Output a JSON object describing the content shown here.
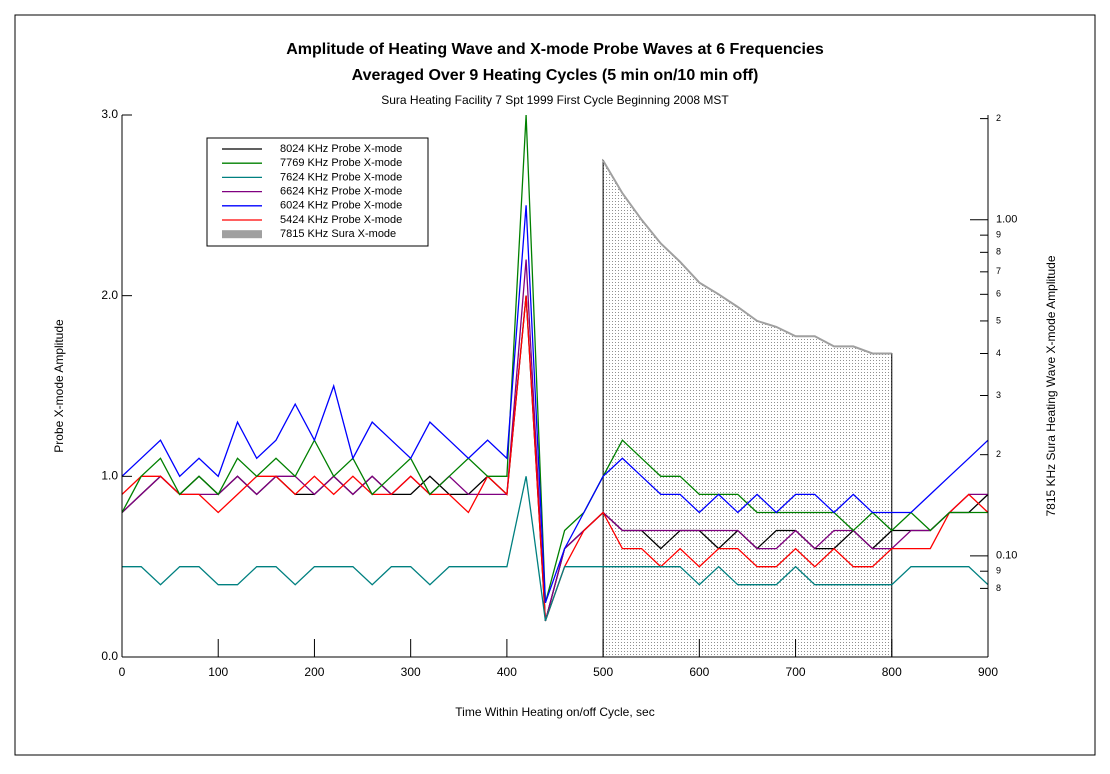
{
  "chart_data": {
    "type": "line",
    "title": "Amplitude of Heating Wave and X-mode Probe Waves at 6 Frequencies",
    "title_line2": "Averaged Over 9 Heating Cycles (5 min on/10 min off)",
    "subtitle": "Sura Heating Facility 7 Spt 1999 First Cycle Beginning 2008 MST",
    "x_label": "Time Within Heating on/off Cycle, sec",
    "y_label": "Probe X-mode Amplitude",
    "y2_label": "7815 KHz Sura Heating Wave X-mode Amplitude",
    "x": [
      0,
      20,
      40,
      60,
      80,
      100,
      120,
      140,
      160,
      180,
      200,
      220,
      240,
      260,
      280,
      300,
      320,
      340,
      360,
      380,
      400,
      420,
      440,
      460,
      480,
      500,
      520,
      540,
      560,
      580,
      600,
      620,
      640,
      660,
      680,
      700,
      720,
      740,
      760,
      780,
      800,
      820,
      840,
      860,
      880,
      900
    ],
    "xlim": [
      0,
      900
    ],
    "xticks": [
      0,
      100,
      200,
      300,
      400,
      500,
      600,
      700,
      800,
      900
    ],
    "ylim": [
      0,
      3
    ],
    "yticks": [
      {
        "value": 0,
        "label": "0.0"
      },
      {
        "value": 1,
        "label": "1.0"
      },
      {
        "value": 2,
        "label": "2.0"
      },
      {
        "value": 3,
        "label": "3.0"
      }
    ],
    "y2lim": [
      0.05,
      2.05
    ],
    "y2_log": true,
    "y2ticks": [
      {
        "value": 0.08,
        "label": "8"
      },
      {
        "value": 0.09,
        "label": "9"
      },
      {
        "value": 0.1,
        "label": "0.10"
      },
      {
        "value": 0.2,
        "label": "2"
      },
      {
        "value": 0.3,
        "label": "3"
      },
      {
        "value": 0.4,
        "label": "4"
      },
      {
        "value": 0.5,
        "label": "5"
      },
      {
        "value": 0.6,
        "label": "6"
      },
      {
        "value": 0.7,
        "label": "7"
      },
      {
        "value": 0.8,
        "label": "8"
      },
      {
        "value": 0.9,
        "label": "9"
      },
      {
        "value": 1,
        "label": "1.00"
      },
      2
    ],
    "series": [
      {
        "name": "8024 KHz Probe X-mode",
        "color": "#000000",
        "values": [
          0.8,
          0.9,
          1.0,
          0.9,
          1.0,
          0.9,
          1.0,
          0.9,
          1.0,
          0.9,
          0.9,
          1.0,
          0.9,
          1.0,
          0.9,
          0.9,
          1.0,
          0.9,
          0.9,
          1.0,
          0.9,
          2.0,
          0.2,
          0.6,
          0.7,
          0.8,
          0.7,
          0.7,
          0.6,
          0.7,
          0.7,
          0.6,
          0.7,
          0.6,
          0.7,
          0.7,
          0.6,
          0.6,
          0.7,
          0.6,
          0.7,
          0.7,
          0.7,
          0.8,
          0.8,
          0.9
        ]
      },
      {
        "name": "7769 KHz Probe X-mode",
        "color": "#008000",
        "values": [
          0.8,
          1.0,
          1.1,
          0.9,
          1.0,
          0.9,
          1.1,
          1.0,
          1.1,
          1.0,
          1.2,
          1.0,
          1.1,
          0.9,
          1.0,
          1.1,
          0.9,
          1.0,
          1.1,
          1.0,
          1.0,
          3.0,
          0.3,
          0.7,
          0.8,
          1.0,
          1.2,
          1.1,
          1.0,
          1.0,
          0.9,
          0.9,
          0.9,
          0.8,
          0.8,
          0.8,
          0.8,
          0.8,
          0.7,
          0.8,
          0.7,
          0.8,
          0.7,
          0.8,
          0.8,
          0.8
        ]
      },
      {
        "name": "7624 KHz Probe X-mode",
        "color": "#008080",
        "values": [
          0.5,
          0.5,
          0.4,
          0.5,
          0.5,
          0.4,
          0.4,
          0.5,
          0.5,
          0.4,
          0.5,
          0.5,
          0.5,
          0.4,
          0.5,
          0.5,
          0.4,
          0.5,
          0.5,
          0.5,
          0.5,
          1.0,
          0.2,
          0.5,
          0.5,
          0.5,
          0.5,
          0.5,
          0.5,
          0.5,
          0.4,
          0.5,
          0.4,
          0.4,
          0.4,
          0.5,
          0.4,
          0.4,
          0.4,
          0.4,
          0.4,
          0.5,
          0.5,
          0.5,
          0.5,
          0.4
        ]
      },
      {
        "name": "6624 KHz Probe X-mode",
        "color": "#800080",
        "values": [
          0.8,
          0.9,
          1.0,
          0.9,
          0.9,
          0.9,
          1.0,
          0.9,
          1.0,
          1.0,
          0.9,
          1.0,
          0.9,
          1.0,
          0.9,
          1.0,
          0.9,
          1.0,
          0.9,
          0.9,
          0.9,
          2.2,
          0.2,
          0.6,
          0.7,
          0.8,
          0.7,
          0.7,
          0.7,
          0.7,
          0.7,
          0.7,
          0.7,
          0.6,
          0.6,
          0.7,
          0.6,
          0.7,
          0.7,
          0.6,
          0.6,
          0.7,
          0.7,
          0.8,
          0.9,
          0.9
        ]
      },
      {
        "name": "6024 KHz Probe X-mode",
        "color": "#0000ff",
        "values": [
          1.0,
          1.1,
          1.2,
          1.0,
          1.1,
          1.0,
          1.3,
          1.1,
          1.2,
          1.4,
          1.2,
          1.5,
          1.1,
          1.3,
          1.2,
          1.1,
          1.3,
          1.2,
          1.1,
          1.2,
          1.1,
          2.5,
          0.3,
          0.6,
          0.8,
          1.0,
          1.1,
          1.0,
          0.9,
          0.9,
          0.8,
          0.9,
          0.8,
          0.9,
          0.8,
          0.9,
          0.9,
          0.8,
          0.9,
          0.8,
          0.8,
          0.8,
          0.9,
          1.0,
          1.1,
          1.2
        ]
      },
      {
        "name": "5424 KHz Probe X-mode",
        "color": "#ff0000",
        "values": [
          0.9,
          1.0,
          1.0,
          0.9,
          0.9,
          0.8,
          0.9,
          1.0,
          1.0,
          0.9,
          1.0,
          0.9,
          1.0,
          0.9,
          0.9,
          1.0,
          0.9,
          0.9,
          0.8,
          1.0,
          0.9,
          2.0,
          0.2,
          0.5,
          0.7,
          0.8,
          0.6,
          0.6,
          0.5,
          0.6,
          0.5,
          0.6,
          0.6,
          0.5,
          0.5,
          0.6,
          0.5,
          0.6,
          0.5,
          0.5,
          0.6,
          0.6,
          0.6,
          0.8,
          0.9,
          0.8
        ]
      },
      {
        "name": "7815 KHz Sura X-mode",
        "color": "#a0a0a0",
        "axis": "y2",
        "values": [
          null,
          null,
          null,
          null,
          null,
          null,
          null,
          null,
          null,
          null,
          null,
          null,
          null,
          null,
          null,
          null,
          null,
          null,
          null,
          null,
          null,
          null,
          null,
          null,
          null,
          1.5,
          1.2,
          1.0,
          0.85,
          0.75,
          0.65,
          0.6,
          0.55,
          0.5,
          0.48,
          0.45,
          0.45,
          0.42,
          0.42,
          0.4,
          0.4,
          null,
          null,
          null,
          null,
          null
        ]
      }
    ]
  }
}
